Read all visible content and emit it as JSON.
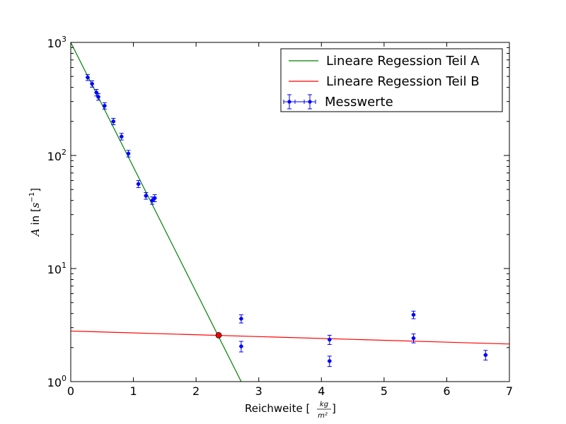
{
  "chart_data": {
    "type": "scatter",
    "title": "",
    "xlabel": {
      "main": "Reichweite [",
      "frac_num": "kg",
      "frac_den": "m²",
      "close": "]"
    },
    "ylabel": {
      "var": "A",
      "mid": " in [",
      "unit": "s",
      "exp": "−1",
      "close": "]"
    },
    "xlim": [
      0,
      7
    ],
    "ylim": [
      1,
      1000
    ],
    "yscale": "log",
    "xticks": [
      0,
      1,
      2,
      3,
      4,
      5,
      6,
      7
    ],
    "xtick_labels": [
      "0",
      "1",
      "2",
      "3",
      "4",
      "5",
      "6",
      "7"
    ],
    "yticks": [
      {
        "value": 1,
        "base": "10",
        "exp": "0"
      },
      {
        "value": 10,
        "base": "10",
        "exp": "1"
      },
      {
        "value": 100,
        "base": "10",
        "exp": "2"
      },
      {
        "value": 1000,
        "base": "10",
        "exp": "3"
      }
    ],
    "legend": {
      "position": "top-right",
      "entries": [
        {
          "label": "Lineare Regession Teil A",
          "color": "#008000",
          "kind": "line"
        },
        {
          "label": "Lineare Regession Teil B",
          "color": "#ff0000",
          "kind": "line"
        },
        {
          "label": "Messwerte",
          "color": "#0000ff",
          "kind": "errorbar"
        }
      ]
    },
    "series": [
      {
        "name": "Lineare Regession Teil A",
        "kind": "line",
        "color": "#008000",
        "x": [
          0.0,
          2.72
        ],
        "y": [
          1000,
          1.0
        ]
      },
      {
        "name": "Lineare Regession Teil B",
        "kind": "line",
        "color": "#ff0000",
        "x": [
          0.0,
          7.0
        ],
        "y": [
          2.8,
          2.15
        ]
      },
      {
        "name": "Messwerte",
        "kind": "errorbar",
        "color": "#0000ff",
        "points": [
          {
            "x": 0.27,
            "y": 490,
            "yerr": 30
          },
          {
            "x": 0.34,
            "y": 430,
            "yerr": 28
          },
          {
            "x": 0.41,
            "y": 360,
            "yerr": 24
          },
          {
            "x": 0.44,
            "y": 330,
            "yerr": 22
          },
          {
            "x": 0.54,
            "y": 275,
            "yerr": 18
          },
          {
            "x": 0.68,
            "y": 200,
            "yerr": 13
          },
          {
            "x": 0.81,
            "y": 147,
            "yerr": 10
          },
          {
            "x": 0.92,
            "y": 104,
            "yerr": 7
          },
          {
            "x": 1.08,
            "y": 56,
            "yerr": 4
          },
          {
            "x": 1.2,
            "y": 44,
            "yerr": 3
          },
          {
            "x": 1.3,
            "y": 40,
            "yerr": 3
          },
          {
            "x": 1.34,
            "y": 42,
            "yerr": 3
          },
          {
            "x": 2.72,
            "y": 3.6,
            "yerr": 0.3
          },
          {
            "x": 2.72,
            "y": 2.05,
            "yerr": 0.22
          },
          {
            "x": 4.13,
            "y": 2.35,
            "yerr": 0.22
          },
          {
            "x": 4.13,
            "y": 1.52,
            "yerr": 0.16
          },
          {
            "x": 5.47,
            "y": 3.9,
            "yerr": 0.3
          },
          {
            "x": 5.47,
            "y": 2.42,
            "yerr": 0.22
          },
          {
            "x": 6.62,
            "y": 1.72,
            "yerr": 0.17
          }
        ]
      },
      {
        "name": "Schnittpunkt",
        "kind": "marker",
        "color": "#ff0000",
        "x": 2.36,
        "y": 2.57
      }
    ]
  }
}
